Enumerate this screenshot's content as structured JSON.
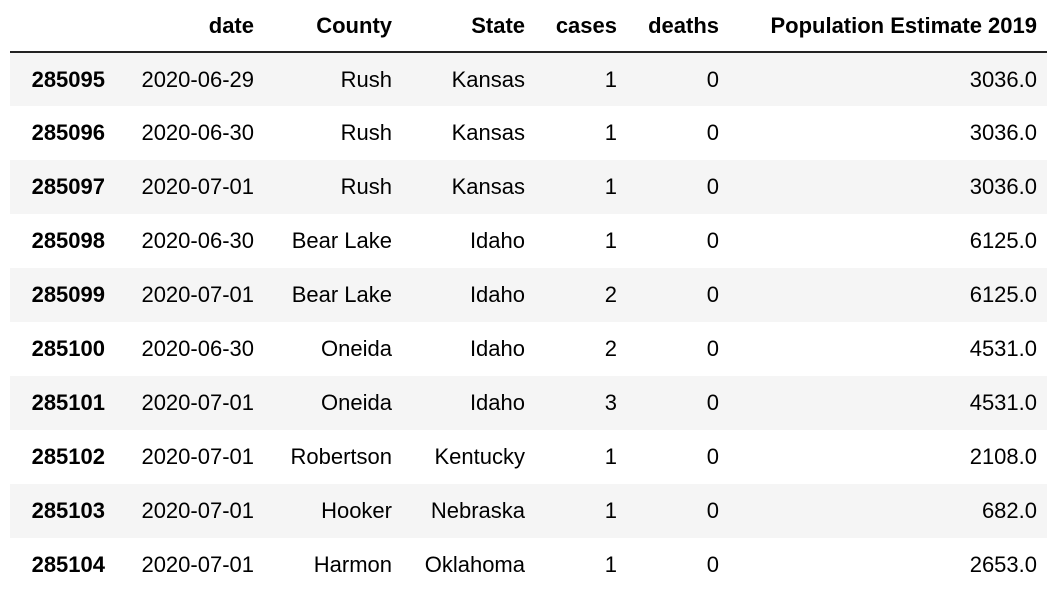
{
  "table": {
    "columns": [
      "",
      "date",
      "County",
      "State",
      "cases",
      "deaths",
      "Population Estimate 2019"
    ],
    "rows": [
      {
        "index": "285095",
        "date": "2020-06-29",
        "county": "Rush",
        "state": "Kansas",
        "cases": "1",
        "deaths": "0",
        "population": "3036.0"
      },
      {
        "index": "285096",
        "date": "2020-06-30",
        "county": "Rush",
        "state": "Kansas",
        "cases": "1",
        "deaths": "0",
        "population": "3036.0"
      },
      {
        "index": "285097",
        "date": "2020-07-01",
        "county": "Rush",
        "state": "Kansas",
        "cases": "1",
        "deaths": "0",
        "population": "3036.0"
      },
      {
        "index": "285098",
        "date": "2020-06-30",
        "county": "Bear Lake",
        "state": "Idaho",
        "cases": "1",
        "deaths": "0",
        "population": "6125.0"
      },
      {
        "index": "285099",
        "date": "2020-07-01",
        "county": "Bear Lake",
        "state": "Idaho",
        "cases": "2",
        "deaths": "0",
        "population": "6125.0"
      },
      {
        "index": "285100",
        "date": "2020-06-30",
        "county": "Oneida",
        "state": "Idaho",
        "cases": "2",
        "deaths": "0",
        "population": "4531.0"
      },
      {
        "index": "285101",
        "date": "2020-07-01",
        "county": "Oneida",
        "state": "Idaho",
        "cases": "3",
        "deaths": "0",
        "population": "4531.0"
      },
      {
        "index": "285102",
        "date": "2020-07-01",
        "county": "Robertson",
        "state": "Kentucky",
        "cases": "1",
        "deaths": "0",
        "population": "2108.0"
      },
      {
        "index": "285103",
        "date": "2020-07-01",
        "county": "Hooker",
        "state": "Nebraska",
        "cases": "1",
        "deaths": "0",
        "population": "682.0"
      },
      {
        "index": "285104",
        "date": "2020-07-01",
        "county": "Harmon",
        "state": "Oklahoma",
        "cases": "1",
        "deaths": "0",
        "population": "2653.0"
      }
    ]
  }
}
